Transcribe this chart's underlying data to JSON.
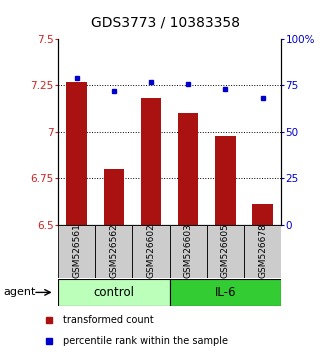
{
  "title": "GDS3773 / 10383358",
  "samples": [
    "GSM526561",
    "GSM526562",
    "GSM526602",
    "GSM526603",
    "GSM526605",
    "GSM526678"
  ],
  "bar_values": [
    7.27,
    6.8,
    7.18,
    7.1,
    6.98,
    6.61
  ],
  "dot_values": [
    79,
    72,
    77,
    76,
    73,
    68
  ],
  "ylim_left": [
    6.5,
    7.5
  ],
  "ylim_right": [
    0,
    100
  ],
  "yticks_left": [
    6.5,
    6.75,
    7.0,
    7.25,
    7.5
  ],
  "ytick_labels_left": [
    "6.5",
    "6.75",
    "7",
    "7.25",
    "7.5"
  ],
  "yticks_right": [
    0,
    25,
    50,
    75,
    100
  ],
  "ytick_labels_right": [
    "0",
    "25",
    "50",
    "75",
    "100%"
  ],
  "bar_color": "#aa1111",
  "dot_color": "#0000cc",
  "bar_base": 6.5,
  "groups": [
    {
      "label": "control",
      "indices": [
        0,
        1,
        2
      ],
      "color": "#bbffbb"
    },
    {
      "label": "IL-6",
      "indices": [
        3,
        4,
        5
      ],
      "color": "#33cc33"
    }
  ],
  "agent_label": "agent",
  "legend_bar_label": "transformed count",
  "legend_dot_label": "percentile rank within the sample",
  "sample_box_color": "#cccccc",
  "tick_color_left": "#cc2222",
  "tick_color_right": "#0000cc",
  "title_fontsize": 10,
  "tick_fontsize": 7.5,
  "sample_fontsize": 6.5,
  "legend_fontsize": 7,
  "group_fontsize": 8.5
}
